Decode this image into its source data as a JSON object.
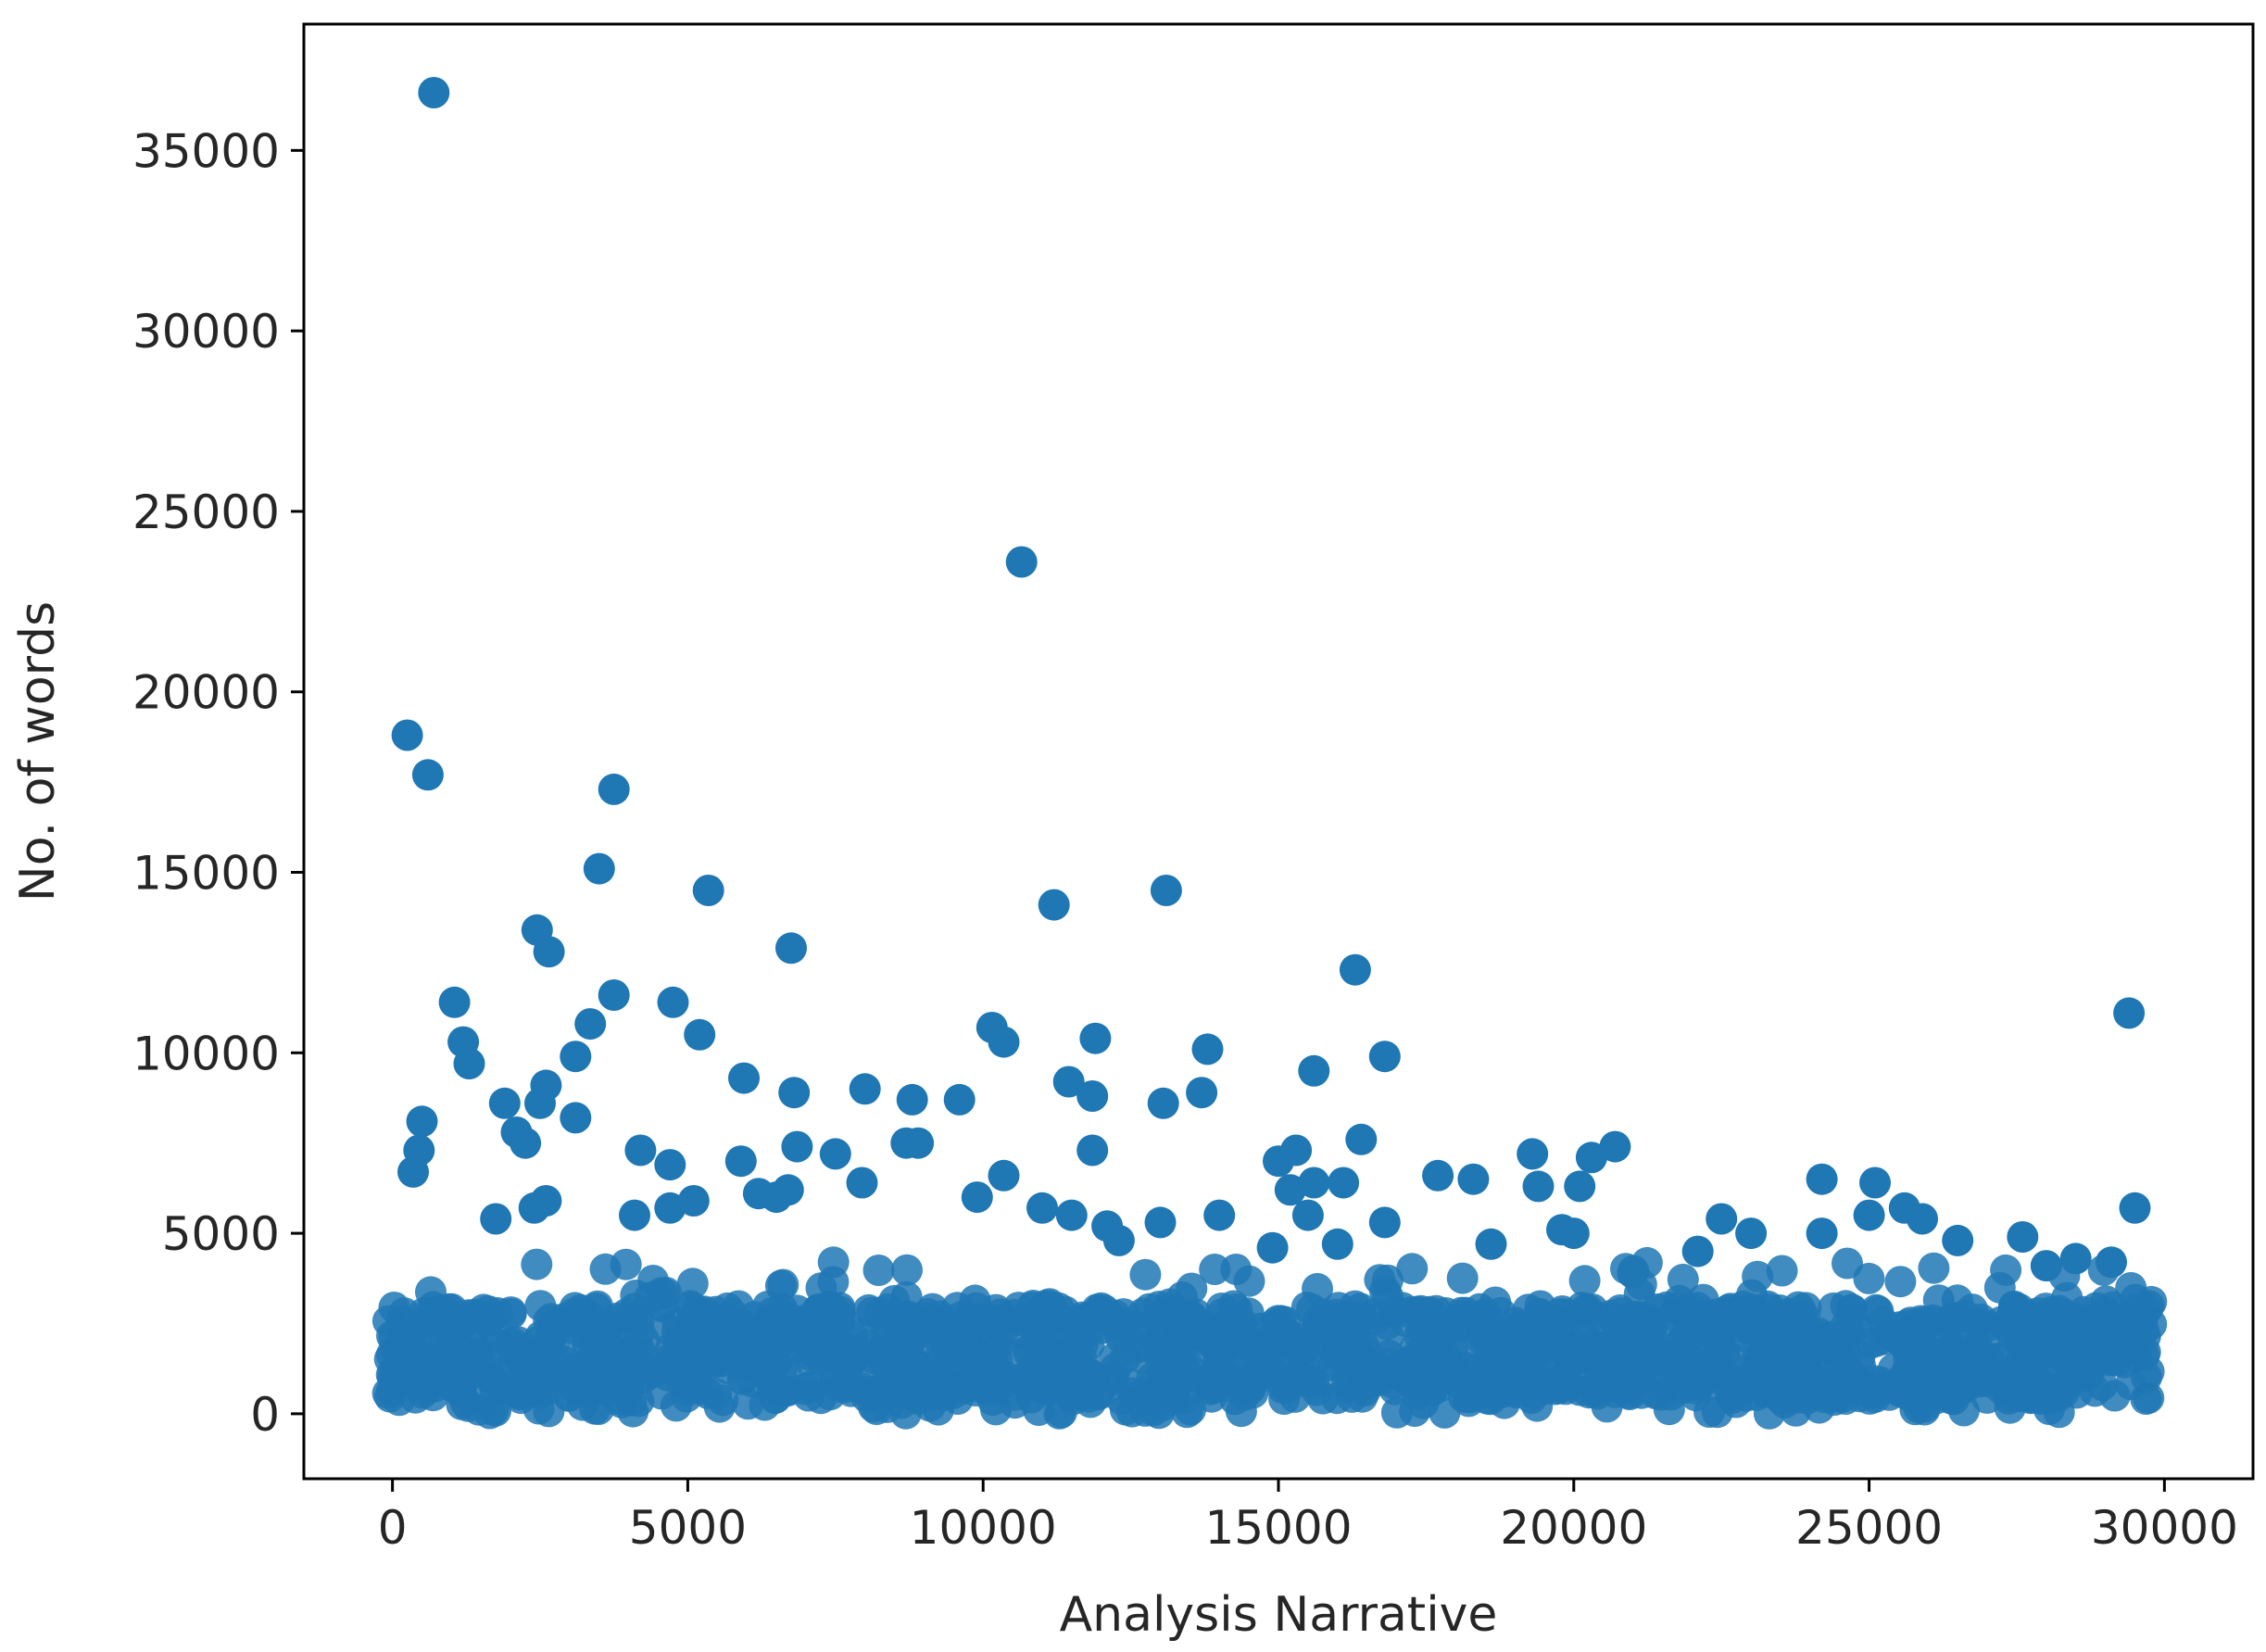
{
  "chart_data": {
    "type": "scatter",
    "title": "",
    "xlabel": "Analysis Narrative",
    "ylabel": "No. of words",
    "xlim": [
      -1500,
      31500
    ],
    "ylim": [
      -1800,
      38500
    ],
    "xticks": [
      0,
      5000,
      10000,
      15000,
      20000,
      25000,
      30000
    ],
    "yticks": [
      0,
      5000,
      10000,
      15000,
      20000,
      25000,
      30000,
      35000
    ],
    "grid": false,
    "legend": "none",
    "marker_color": "#1f77b4",
    "dense_band": {
      "description": "thousands of overlapping points",
      "x_range": [
        -100,
        29800
      ],
      "y_range": [
        0,
        4200
      ],
      "typical_range": [
        400,
        3000
      ]
    },
    "series": [
      {
        "points": [
          [
            700,
            36600
          ],
          [
            10650,
            23600
          ],
          [
            250,
            18800
          ],
          [
            600,
            17700
          ],
          [
            3750,
            17300
          ],
          [
            3500,
            15100
          ],
          [
            5350,
            14500
          ],
          [
            13100,
            14500
          ],
          [
            11200,
            14100
          ],
          [
            2450,
            13400
          ],
          [
            2650,
            12800
          ],
          [
            6750,
            12900
          ],
          [
            16300,
            12300
          ],
          [
            1050,
            11400
          ],
          [
            3750,
            11600
          ],
          [
            4750,
            11400
          ],
          [
            29400,
            11100
          ],
          [
            3350,
            10800
          ],
          [
            10150,
            10700
          ],
          [
            10350,
            10300
          ],
          [
            11900,
            10400
          ],
          [
            5200,
            10500
          ],
          [
            1200,
            10300
          ],
          [
            1300,
            9700
          ],
          [
            13800,
            10100
          ],
          [
            16800,
            9900
          ],
          [
            3100,
            9900
          ],
          [
            15600,
            9500
          ],
          [
            5950,
            9300
          ],
          [
            11450,
            9200
          ],
          [
            2600,
            9100
          ],
          [
            8000,
            9000
          ],
          [
            6800,
            8900
          ],
          [
            8800,
            8700
          ],
          [
            9600,
            8700
          ],
          [
            11850,
            8800
          ],
          [
            13700,
            8900
          ],
          [
            13050,
            8600
          ],
          [
            1900,
            8600
          ],
          [
            2500,
            8600
          ],
          [
            500,
            8100
          ],
          [
            3100,
            8200
          ],
          [
            2100,
            7800
          ],
          [
            2250,
            7500
          ],
          [
            450,
            7300
          ],
          [
            350,
            6700
          ],
          [
            4200,
            7300
          ],
          [
            4700,
            6900
          ],
          [
            6850,
            7400
          ],
          [
            7500,
            7200
          ],
          [
            8700,
            7500
          ],
          [
            8900,
            7500
          ],
          [
            11850,
            7300
          ],
          [
            16400,
            7600
          ],
          [
            15000,
            7000
          ],
          [
            15300,
            7300
          ],
          [
            15200,
            6200
          ],
          [
            15600,
            6400
          ],
          [
            16100,
            6400
          ],
          [
            5900,
            7000
          ],
          [
            7950,
            6400
          ],
          [
            10350,
            6600
          ],
          [
            17700,
            6600
          ],
          [
            18300,
            6500
          ],
          [
            19300,
            7200
          ],
          [
            19400,
            6300
          ],
          [
            20100,
            6300
          ],
          [
            20300,
            7100
          ],
          [
            20700,
            7400
          ],
          [
            24200,
            6500
          ],
          [
            25100,
            6400
          ],
          [
            29500,
            5700
          ],
          [
            1750,
            5400
          ],
          [
            2600,
            5900
          ],
          [
            2400,
            5700
          ],
          [
            4100,
            5500
          ],
          [
            4700,
            5700
          ],
          [
            5100,
            5900
          ],
          [
            6200,
            6100
          ],
          [
            6500,
            6000
          ],
          [
            6700,
            6200
          ],
          [
            9900,
            6000
          ],
          [
            11000,
            5700
          ],
          [
            11500,
            5500
          ],
          [
            12100,
            5200
          ],
          [
            13000,
            5300
          ],
          [
            14000,
            5500
          ],
          [
            15500,
            5500
          ],
          [
            16800,
            5300
          ],
          [
            16000,
            4700
          ],
          [
            14900,
            4600
          ],
          [
            20000,
            5000
          ],
          [
            19800,
            5100
          ],
          [
            22500,
            5400
          ],
          [
            23000,
            5000
          ],
          [
            24200,
            5000
          ],
          [
            25000,
            5500
          ],
          [
            25600,
            5700
          ],
          [
            25900,
            5400
          ],
          [
            26500,
            4800
          ],
          [
            27600,
            4900
          ],
          [
            22100,
            4500
          ],
          [
            28500,
            4300
          ],
          [
            29100,
            4200
          ],
          [
            28000,
            4100
          ],
          [
            18600,
            4700
          ],
          [
            21000,
            3900
          ],
          [
            12300,
            4800
          ]
        ]
      }
    ]
  }
}
